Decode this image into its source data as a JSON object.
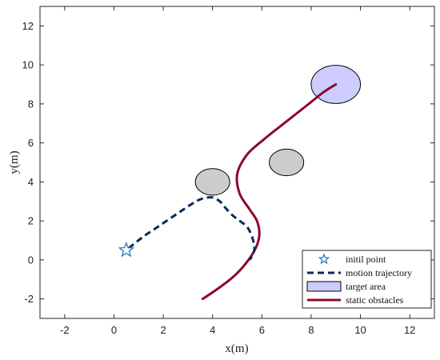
{
  "chart_data": {
    "type": "line",
    "title": "",
    "xlabel": "x(m)",
    "ylabel": "y(m)",
    "xlim": [
      -3,
      13
    ],
    "ylim": [
      -3,
      13
    ],
    "xticks": [
      -2,
      0,
      2,
      4,
      6,
      8,
      10,
      12
    ],
    "yticks": [
      -2,
      0,
      2,
      4,
      6,
      8,
      10,
      12
    ],
    "grid": false,
    "legend_position": "bottom-right",
    "colors": {
      "trajectory": "#0b2a5a",
      "path": "#8b0a2e",
      "obstacle_fill": "#cccccc",
      "target_fill": "#ccccff",
      "star": "#1f77c4"
    },
    "initial_point": {
      "x": 0.5,
      "y": 0.5
    },
    "motion_trajectory": {
      "x": [
        0.6,
        1.2,
        1.9,
        2.6,
        3.2,
        3.6,
        4.0,
        4.3,
        4.5,
        4.8,
        5.1,
        5.4,
        5.6,
        5.7,
        5.6,
        5.5
      ],
      "y": [
        0.6,
        1.2,
        1.8,
        2.4,
        2.9,
        3.15,
        3.2,
        3.0,
        2.7,
        2.3,
        2.0,
        1.7,
        1.2,
        0.6,
        0.2,
        0.0
      ]
    },
    "red_path": {
      "x": [
        3.6,
        4.3,
        4.9,
        5.4,
        5.75,
        5.9,
        5.8,
        5.5,
        5.1,
        5.0,
        5.4,
        6.1,
        7.0,
        7.9,
        8.5,
        9.0
      ],
      "y": [
        -2.0,
        -1.4,
        -0.8,
        -0.1,
        0.6,
        1.3,
        2.0,
        2.6,
        3.4,
        4.4,
        5.4,
        6.2,
        7.1,
        8.0,
        8.6,
        9.0
      ]
    },
    "obstacles": [
      {
        "cx": 4.0,
        "cy": 4.0,
        "rx": 0.7,
        "ry": 0.68
      },
      {
        "cx": 7.0,
        "cy": 5.0,
        "rx": 0.7,
        "ry": 0.68
      }
    ],
    "target": {
      "cx": 9.0,
      "cy": 9.0,
      "rx": 1.0,
      "ry": 0.98
    },
    "legend": [
      {
        "key": "star",
        "label": "initil point"
      },
      {
        "key": "dashed",
        "label": "motion trajectory"
      },
      {
        "key": "patch",
        "label": "target area"
      },
      {
        "key": "solid",
        "label": "static obstacles"
      }
    ]
  }
}
